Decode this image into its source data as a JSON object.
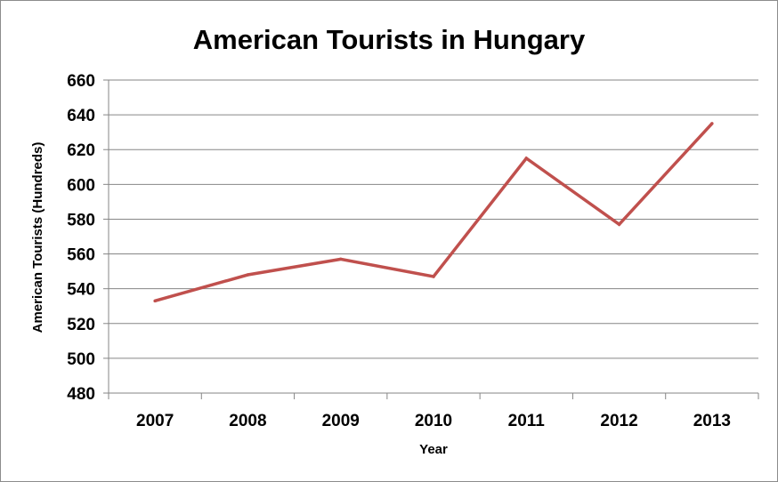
{
  "chart_data": {
    "type": "line",
    "title": "American Tourists in Hungary",
    "xlabel": "Year",
    "ylabel": "American Tourists  (Hundreds)",
    "categories": [
      "2007",
      "2008",
      "2009",
      "2010",
      "2011",
      "2012",
      "2013"
    ],
    "series": [
      {
        "values": [
          533,
          548,
          557,
          547,
          615,
          577,
          635
        ]
      }
    ],
    "ylim": [
      480,
      660
    ],
    "yticks": [
      480,
      500,
      520,
      540,
      560,
      580,
      600,
      620,
      640,
      660
    ],
    "grid": true,
    "legend": "none",
    "line_color": "#c0504d",
    "grid_color": "#868686"
  }
}
